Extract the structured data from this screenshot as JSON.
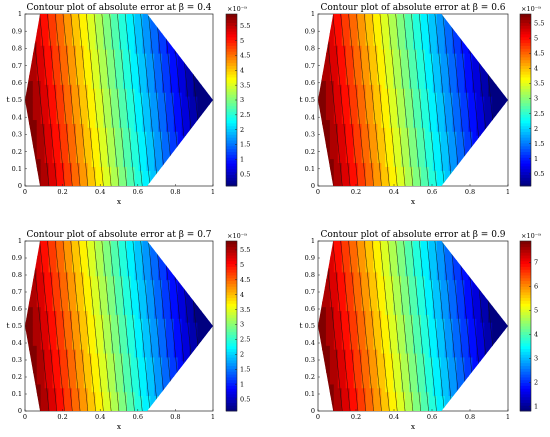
{
  "chart_data": [
    {
      "type": "heatmap",
      "subtype": "filled-contour",
      "title": "Contour plot of absolute error at β = 0.4",
      "xlabel": "x",
      "ylabel": "t",
      "xlim": [
        0,
        1
      ],
      "ylim": [
        0,
        1
      ],
      "xticks": [
        "0",
        "0.2",
        "0.4",
        "0.6",
        "0.8",
        "1"
      ],
      "yticks": [
        "0",
        "0.1",
        "0.2",
        "0.3",
        "0.4",
        "0.5",
        "0.6",
        "0.7",
        "0.8",
        "0.9",
        "1"
      ],
      "colorbar": {
        "exponent": "×10⁻⁹",
        "ticks": [
          "0.5",
          "1",
          "1.5",
          "2",
          "2.5",
          "3",
          "3.5",
          "4",
          "4.5",
          "5",
          "5.5"
        ],
        "tick_values": [
          0.5,
          1,
          1.5,
          2,
          2.5,
          3,
          3.5,
          4,
          4.5,
          5,
          5.5
        ],
        "range": [
          0.1,
          5.9
        ]
      },
      "colormap": "jet",
      "domain": "hexagon"
    },
    {
      "type": "heatmap",
      "subtype": "filled-contour",
      "title": "Contour plot of absolute error at β = 0.6",
      "xlabel": "x",
      "ylabel": "t",
      "xlim": [
        0,
        1
      ],
      "ylim": [
        0,
        1
      ],
      "xticks": [
        "0",
        "0.2",
        "0.4",
        "0.6",
        "0.8",
        "1"
      ],
      "yticks": [
        "0",
        "0.1",
        "0.2",
        "0.3",
        "0.4",
        "0.5",
        "0.6",
        "0.7",
        "0.8",
        "0.9",
        "1"
      ],
      "colorbar": {
        "exponent": "×10⁻⁹",
        "ticks": [
          "0.5",
          "1",
          "1.5",
          "2",
          "2.5",
          "3",
          "3.5",
          "4",
          "4.5",
          "5",
          "5.5"
        ],
        "tick_values": [
          0.5,
          1,
          1.5,
          2,
          2.5,
          3,
          3.5,
          4,
          4.5,
          5,
          5.5
        ],
        "range": [
          0.1,
          5.8
        ]
      },
      "colormap": "jet",
      "domain": "hexagon"
    },
    {
      "type": "heatmap",
      "subtype": "filled-contour",
      "title": "Contour plot of absolute error at β = 0.7",
      "xlabel": "x",
      "ylabel": "t",
      "xlim": [
        0,
        1
      ],
      "ylim": [
        0,
        1
      ],
      "xticks": [
        "0",
        "0.2",
        "0.4",
        "0.6",
        "0.8",
        "1"
      ],
      "yticks": [
        "0",
        "0.1",
        "0.2",
        "0.3",
        "0.4",
        "0.5",
        "0.6",
        "0.7",
        "0.8",
        "0.9",
        "1"
      ],
      "colorbar": {
        "exponent": "×10⁻⁹",
        "ticks": [
          "0.5",
          "1",
          "1.5",
          "2",
          "2.5",
          "3",
          "3.5",
          "4",
          "4.5",
          "5",
          "5.5"
        ],
        "tick_values": [
          0.5,
          1,
          1.5,
          2,
          2.5,
          3,
          3.5,
          4,
          4.5,
          5,
          5.5
        ],
        "range": [
          0.1,
          5.8
        ]
      },
      "colormap": "jet",
      "domain": "hexagon"
    },
    {
      "type": "heatmap",
      "subtype": "filled-contour",
      "title": "Contour plot of absolute error at β = 0.9",
      "xlabel": "x",
      "ylabel": "t",
      "xlim": [
        0,
        1
      ],
      "ylim": [
        0,
        1
      ],
      "xticks": [
        "0",
        "0.2",
        "0.4",
        "0.6",
        "0.8",
        "1"
      ],
      "yticks": [
        "0",
        "0.1",
        "0.2",
        "0.3",
        "0.4",
        "0.5",
        "0.6",
        "0.7",
        "0.8",
        "0.9",
        "1"
      ],
      "colorbar": {
        "exponent": "×10⁻⁹",
        "ticks": [
          "1",
          "2",
          "3",
          "4",
          "5",
          "6",
          "7"
        ],
        "tick_values": [
          1,
          2,
          3,
          4,
          5,
          6,
          7
        ],
        "range": [
          0.8,
          7.9
        ]
      },
      "colormap": "jet",
      "domain": "hexagon"
    }
  ]
}
